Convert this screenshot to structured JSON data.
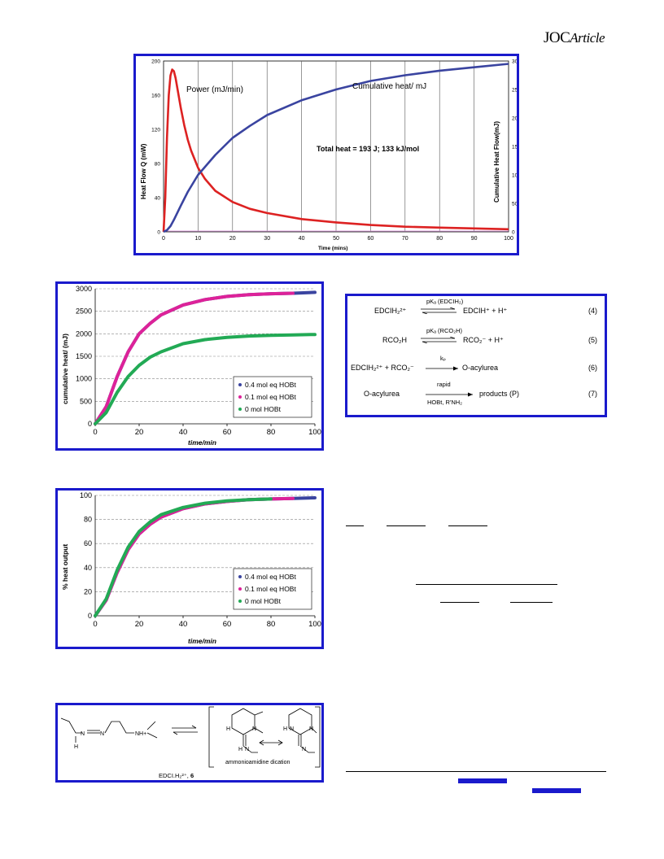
{
  "header": {
    "journal": "JOC",
    "section": "Article"
  },
  "fig1": {
    "annotations": {
      "power": "Power (mJ/min)",
      "cumulative": "Cumulative heat/ mJ",
      "total": "Total heat = 193 J; 133 kJ/mol"
    },
    "xlabel": "Time (mins)",
    "ylabel_left": "Heat Flow Q (mW)",
    "ylabel_right": "Cumulative Heat Flow(mJ)"
  },
  "chart_data": [
    {
      "type": "line",
      "x_ticks": [
        0,
        10,
        20,
        30,
        40,
        50,
        60,
        70,
        80,
        90,
        100
      ],
      "y_ticks_left": [
        0,
        40,
        80,
        120,
        160,
        200
      ],
      "y_ticks_right": [
        0,
        500,
        1000,
        1500,
        2000,
        2500,
        3000
      ],
      "xlim": [
        0,
        100
      ],
      "ylim_left": [
        0,
        200
      ],
      "ylim_right": [
        0,
        3000
      ],
      "grid": "vertical",
      "series": [
        {
          "name": "Power (mJ/min)",
          "axis": "left",
          "color": "#dd2222",
          "x": [
            0,
            0.5,
            1,
            1.5,
            2,
            2.5,
            3,
            3.5,
            4,
            5,
            6,
            7,
            8,
            10,
            12,
            15,
            20,
            25,
            30,
            40,
            50,
            60,
            70,
            80,
            90,
            100
          ],
          "y": [
            0,
            40,
            110,
            160,
            183,
            190,
            188,
            180,
            168,
            145,
            125,
            108,
            95,
            75,
            62,
            48,
            35,
            27,
            22,
            15,
            11,
            8,
            6,
            5,
            4,
            3
          ]
        },
        {
          "name": "Cumulative heat/ mJ",
          "axis": "right",
          "color": "#3a44a0",
          "x": [
            0,
            1,
            2,
            3,
            5,
            7,
            10,
            15,
            20,
            25,
            30,
            40,
            50,
            60,
            70,
            80,
            90,
            100
          ],
          "y": [
            0,
            30,
            100,
            210,
            460,
            700,
            1000,
            1350,
            1650,
            1860,
            2050,
            2310,
            2500,
            2650,
            2750,
            2830,
            2890,
            2950
          ]
        }
      ]
    },
    {
      "type": "line",
      "x_ticks": [
        0,
        20,
        40,
        60,
        80,
        100
      ],
      "y_ticks": [
        0,
        500,
        1000,
        1500,
        2000,
        2500,
        3000
      ],
      "xlim": [
        0,
        100
      ],
      "ylim": [
        0,
        3000
      ],
      "xlabel": "time/min",
      "ylabel": "cumulative heat/ (mJ)",
      "grid": "horizontal",
      "legend": "bottom-right",
      "series": [
        {
          "name": "0.4 mol eq HOBt",
          "color": "#3a44a0",
          "x": [
            0,
            5,
            10,
            15,
            20,
            25,
            30,
            40,
            50,
            60,
            70,
            80,
            90,
            100
          ],
          "y": [
            0,
            380,
            1050,
            1600,
            2000,
            2230,
            2420,
            2640,
            2760,
            2830,
            2870,
            2890,
            2900,
            2920
          ]
        },
        {
          "name": "0.1 mol eq HOBt",
          "color": "#dd2299",
          "x": [
            0,
            5,
            10,
            15,
            20,
            25,
            30,
            40,
            50,
            60,
            70,
            80,
            90
          ],
          "y": [
            0,
            380,
            1050,
            1600,
            2000,
            2230,
            2420,
            2640,
            2760,
            2830,
            2870,
            2890,
            2900
          ]
        },
        {
          "name": "0 mol HOBt",
          "color": "#22aa55",
          "x": [
            0,
            5,
            10,
            15,
            20,
            25,
            30,
            40,
            50,
            60,
            70,
            80,
            90,
            100
          ],
          "y": [
            0,
            250,
            700,
            1050,
            1300,
            1480,
            1600,
            1780,
            1870,
            1920,
            1950,
            1965,
            1975,
            1985
          ]
        }
      ]
    },
    {
      "type": "line",
      "x_ticks": [
        0,
        20,
        40,
        60,
        80,
        100
      ],
      "y_ticks": [
        0,
        20,
        40,
        60,
        80,
        100
      ],
      "xlim": [
        0,
        100
      ],
      "ylim": [
        0,
        100
      ],
      "xlabel": "time/min",
      "ylabel": "% heat output",
      "grid": "horizontal",
      "legend": "bottom-right",
      "series": [
        {
          "name": "0.4 mol eq HOBt",
          "color": "#3a44a0",
          "x": [
            0,
            5,
            10,
            15,
            20,
            25,
            30,
            40,
            50,
            60,
            70,
            80,
            90,
            100
          ],
          "y": [
            0,
            13,
            36,
            55,
            68,
            76,
            82,
            89,
            93,
            95,
            96.5,
            97,
            97.5,
            98
          ]
        },
        {
          "name": "0.1 mol eq HOBt",
          "color": "#dd2299",
          "x": [
            0,
            5,
            10,
            15,
            20,
            25,
            30,
            40,
            50,
            60,
            70,
            80,
            90
          ],
          "y": [
            0,
            13,
            36,
            55,
            68,
            76,
            82,
            89,
            93,
            95,
            96.5,
            97,
            97.5
          ]
        },
        {
          "name": "0 mol HOBt",
          "color": "#22aa55",
          "x": [
            0,
            5,
            10,
            15,
            20,
            25,
            30,
            40,
            50,
            60,
            70,
            80
          ],
          "y": [
            0,
            14,
            38,
            57,
            70,
            78,
            84,
            90,
            93.5,
            95.5,
            96.5,
            97
          ]
        }
      ]
    }
  ],
  "scheme": {
    "r4": {
      "left": "EDCIH₂²⁺",
      "above": "pKₐ (EDCIH₂)",
      "right": "EDCIH⁺  +  H⁺",
      "num": "(4)"
    },
    "r5": {
      "left": "RCO₂H",
      "above": "pKₐ (RCO₂H)",
      "right": "RCO₂⁻  +  H⁺",
      "num": "(5)"
    },
    "r6": {
      "left": "EDCIH₂²⁺  +  RCO₂⁻",
      "above": "kₚ",
      "right": "O-acylurea",
      "num": "(6)"
    },
    "r7": {
      "left": "O-acylurea",
      "above": "rapid",
      "below": "HOBt, R'NH₂",
      "right": "products (P)",
      "num": "(7)"
    }
  },
  "structure": {
    "caption_main": "EDCI.H₂²⁺,",
    "caption_num": "6",
    "dication": "ammonioamidine dication"
  }
}
